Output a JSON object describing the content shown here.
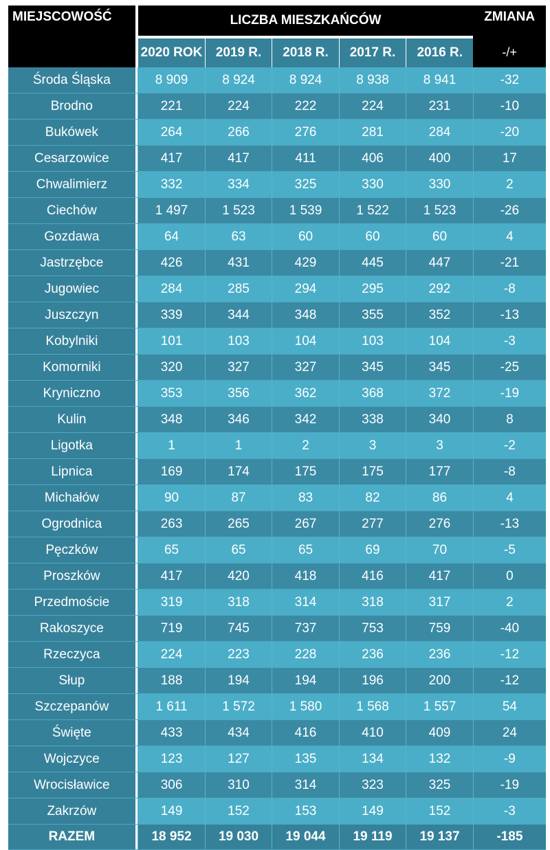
{
  "header": {
    "place_label": "MIEJSCOWOŚĆ",
    "population_label": "LICZBA MIESZKAŃCÓW",
    "change_label": "ZMIANA",
    "change_sub": "-/+",
    "years": [
      "2020 ROK",
      "2019 R.",
      "2018 R.",
      "2017 R.",
      "2016 R."
    ]
  },
  "rows": [
    {
      "name": "Środa Śląska",
      "values": [
        "8 909",
        "8 924",
        "8 924",
        "8 938",
        "8 941"
      ],
      "change": "-32"
    },
    {
      "name": "Brodno",
      "values": [
        "221",
        "224",
        "222",
        "224",
        "231"
      ],
      "change": "-10"
    },
    {
      "name": "Bukówek",
      "values": [
        "264",
        "266",
        "276",
        "281",
        "284"
      ],
      "change": "-20"
    },
    {
      "name": "Cesarzowice",
      "values": [
        "417",
        "417",
        "411",
        "406",
        "400"
      ],
      "change": "17"
    },
    {
      "name": "Chwalimierz",
      "values": [
        "332",
        "334",
        "325",
        "330",
        "330"
      ],
      "change": "2"
    },
    {
      "name": "Ciechów",
      "values": [
        "1 497",
        "1 523",
        "1 539",
        "1 522",
        "1 523"
      ],
      "change": "-26"
    },
    {
      "name": "Gozdawa",
      "values": [
        "64",
        "63",
        "60",
        "60",
        "60"
      ],
      "change": "4"
    },
    {
      "name": "Jastrzębce",
      "values": [
        "426",
        "431",
        "429",
        "445",
        "447"
      ],
      "change": "-21"
    },
    {
      "name": "Jugowiec",
      "values": [
        "284",
        "285",
        "294",
        "295",
        "292"
      ],
      "change": "-8"
    },
    {
      "name": "Juszczyn",
      "values": [
        "339",
        "344",
        "348",
        "355",
        "352"
      ],
      "change": "-13"
    },
    {
      "name": "Kobylniki",
      "values": [
        "101",
        "103",
        "104",
        "103",
        "104"
      ],
      "change": "-3"
    },
    {
      "name": "Komorniki",
      "values": [
        "320",
        "327",
        "327",
        "345",
        "345"
      ],
      "change": "-25"
    },
    {
      "name": "Kryniczno",
      "values": [
        "353",
        "356",
        "362",
        "368",
        "372"
      ],
      "change": "-19"
    },
    {
      "name": "Kulin",
      "values": [
        "348",
        "346",
        "342",
        "338",
        "340"
      ],
      "change": "8"
    },
    {
      "name": "Ligotka",
      "values": [
        "1",
        "1",
        "2",
        "3",
        "3"
      ],
      "change": "-2"
    },
    {
      "name": "Lipnica",
      "values": [
        "169",
        "174",
        "175",
        "175",
        "177"
      ],
      "change": "-8"
    },
    {
      "name": "Michałów",
      "values": [
        "90",
        "87",
        "83",
        "82",
        "86"
      ],
      "change": "4"
    },
    {
      "name": "Ogrodnica",
      "values": [
        "263",
        "265",
        "267",
        "277",
        "276"
      ],
      "change": "-13"
    },
    {
      "name": "Pęczków",
      "values": [
        "65",
        "65",
        "65",
        "69",
        "70"
      ],
      "change": "-5"
    },
    {
      "name": "Proszków",
      "values": [
        "417",
        "420",
        "418",
        "416",
        "417"
      ],
      "change": "0"
    },
    {
      "name": "Przedmoście",
      "values": [
        "319",
        "318",
        "314",
        "318",
        "317"
      ],
      "change": "2"
    },
    {
      "name": "Rakoszyce",
      "values": [
        "719",
        "745",
        "737",
        "753",
        "759"
      ],
      "change": "-40"
    },
    {
      "name": "Rzeczyca",
      "values": [
        "224",
        "223",
        "228",
        "236",
        "236"
      ],
      "change": "-12"
    },
    {
      "name": "Słup",
      "values": [
        "188",
        "194",
        "194",
        "196",
        "200"
      ],
      "change": "-12"
    },
    {
      "name": "Szczepanów",
      "values": [
        "1 611",
        "1 572",
        "1 580",
        "1 568",
        "1 557"
      ],
      "change": "54"
    },
    {
      "name": "Święte",
      "values": [
        "433",
        "434",
        "416",
        "410",
        "409"
      ],
      "change": "24"
    },
    {
      "name": "Wojczyce",
      "values": [
        "123",
        "127",
        "135",
        "134",
        "132"
      ],
      "change": "-9"
    },
    {
      "name": "Wrocisławice",
      "values": [
        "306",
        "310",
        "314",
        "323",
        "325"
      ],
      "change": "-19"
    },
    {
      "name": "Zakrzów",
      "values": [
        "149",
        "152",
        "153",
        "149",
        "152"
      ],
      "change": "-3"
    }
  ],
  "total": {
    "name": "RAZEM",
    "values": [
      "18 952",
      "19 030",
      "19 044",
      "19 119",
      "19 137"
    ],
    "change": "-185"
  },
  "colors": {
    "header_bg": "#000000",
    "name_col": "#35819a",
    "row_light": "#4aaec8",
    "row_dark": "#3a8aa4",
    "text": "#ffffff"
  }
}
